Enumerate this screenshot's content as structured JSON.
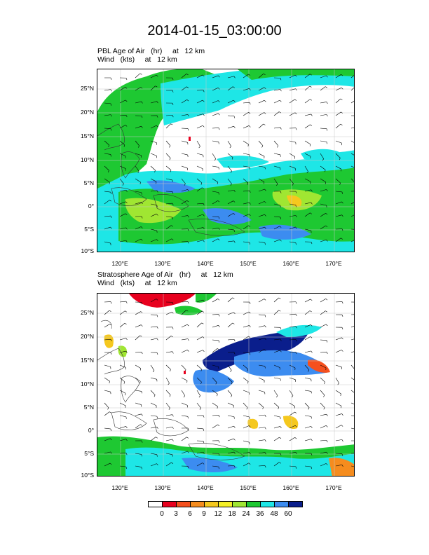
{
  "title": "2014-01-15_03:00:00",
  "panels": [
    {
      "id": "pbl",
      "label_line1": "PBL Age of Air   (hr)     at   12 km",
      "label_line2": "Wind   (kts)     at   12 km"
    },
    {
      "id": "strat",
      "label_line1": "Stratosphere Age of Air   (hr)     at   12 km",
      "label_line2": "Wind   (kts)     at   12 km"
    }
  ],
  "lat_ticks": [
    "25°N",
    "20°N",
    "15°N",
    "10°N",
    "5°N",
    "0°",
    "5°S",
    "10°S"
  ],
  "lon_ticks": [
    "120°E",
    "130°E",
    "140°E",
    "150°E",
    "160°E",
    "170°E"
  ],
  "colorbar": {
    "labels": [
      "0",
      "3",
      "6",
      "9",
      "12",
      "18",
      "24",
      "36",
      "48",
      "60"
    ],
    "colors": [
      "#ffffff",
      "#e8001e",
      "#f5501e",
      "#f58c1e",
      "#f5c81e",
      "#f5f028",
      "#a0e632",
      "#1ec832",
      "#1ee6e6",
      "#3c8cf0",
      "#0a1e8c"
    ]
  }
}
